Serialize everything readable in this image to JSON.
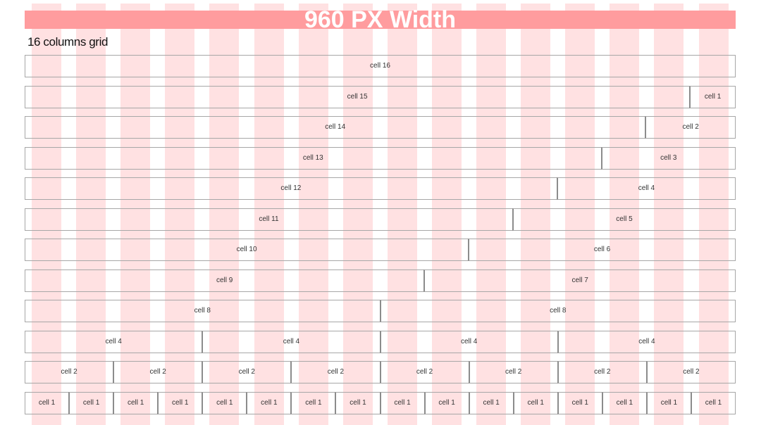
{
  "header": {
    "title": "960 PX Width",
    "subtitle": "16 columns grid"
  },
  "grid": {
    "columns": 16,
    "rows": [
      {
        "cells": [
          {
            "label": "cell 16",
            "span": 16
          }
        ]
      },
      {
        "cells": [
          {
            "label": "cell 15",
            "span": 15
          },
          {
            "label": "cell 1",
            "span": 1
          }
        ]
      },
      {
        "cells": [
          {
            "label": "cell 14",
            "span": 14
          },
          {
            "label": "cell 2",
            "span": 2
          }
        ]
      },
      {
        "cells": [
          {
            "label": "cell 13",
            "span": 13
          },
          {
            "label": "cell 3",
            "span": 3
          }
        ]
      },
      {
        "cells": [
          {
            "label": "cell 12",
            "span": 12
          },
          {
            "label": "cell 4",
            "span": 4
          }
        ]
      },
      {
        "cells": [
          {
            "label": "cell 11",
            "span": 11
          },
          {
            "label": "cell 5",
            "span": 5
          }
        ]
      },
      {
        "cells": [
          {
            "label": "cell 10",
            "span": 10
          },
          {
            "label": "cell 6",
            "span": 6
          }
        ]
      },
      {
        "cells": [
          {
            "label": "cell 9",
            "span": 9
          },
          {
            "label": "cell 7",
            "span": 7
          }
        ]
      },
      {
        "cells": [
          {
            "label": "cell 8",
            "span": 8
          },
          {
            "label": "cell 8",
            "span": 8
          }
        ]
      },
      {
        "cells": [
          {
            "label": "cell 4",
            "span": 4
          },
          {
            "label": "cell 4",
            "span": 4
          },
          {
            "label": "cell 4",
            "span": 4
          },
          {
            "label": "cell 4",
            "span": 4
          }
        ]
      },
      {
        "cells": [
          {
            "label": "cell 2",
            "span": 2
          },
          {
            "label": "cell 2",
            "span": 2
          },
          {
            "label": "cell 2",
            "span": 2
          },
          {
            "label": "cell 2",
            "span": 2
          },
          {
            "label": "cell 2",
            "span": 2
          },
          {
            "label": "cell 2",
            "span": 2
          },
          {
            "label": "cell 2",
            "span": 2
          },
          {
            "label": "cell 2",
            "span": 2
          }
        ]
      },
      {
        "cells": [
          {
            "label": "cell 1",
            "span": 1
          },
          {
            "label": "cell 1",
            "span": 1
          },
          {
            "label": "cell 1",
            "span": 1
          },
          {
            "label": "cell 1",
            "span": 1
          },
          {
            "label": "cell 1",
            "span": 1
          },
          {
            "label": "cell 1",
            "span": 1
          },
          {
            "label": "cell 1",
            "span": 1
          },
          {
            "label": "cell 1",
            "span": 1
          },
          {
            "label": "cell 1",
            "span": 1
          },
          {
            "label": "cell 1",
            "span": 1
          },
          {
            "label": "cell 1",
            "span": 1
          },
          {
            "label": "cell 1",
            "span": 1
          },
          {
            "label": "cell 1",
            "span": 1
          },
          {
            "label": "cell 1",
            "span": 1
          },
          {
            "label": "cell 1",
            "span": 1
          },
          {
            "label": "cell 1",
            "span": 1
          }
        ]
      }
    ]
  },
  "colors": {
    "column_stripe": "#ffe1e2",
    "banner": "#ff9c9e",
    "banner_text": "#ffffff",
    "cell_border": "#a7a7a7"
  }
}
